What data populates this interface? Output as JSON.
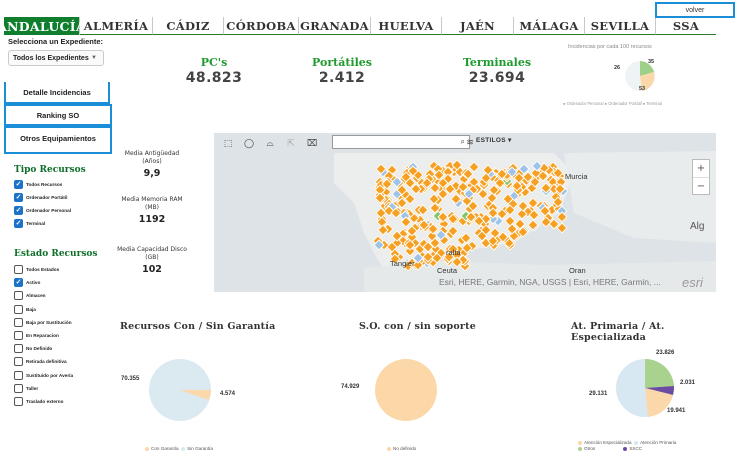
{
  "tabs": [
    "ANDALUCÍA",
    "ALMERÍA",
    "CÁDIZ",
    "CÓRDOBA",
    "GRANADA",
    "HUELVA",
    "JAÉN",
    "MÁLAGA",
    "SEVILLA",
    "SSA"
  ],
  "volver_label": "volver",
  "left": {
    "select_label": "Selecciona un Expediente:",
    "select_value": "Todos los Expedientes",
    "nav": [
      "Detalle Incidencias",
      "Ranking SO",
      "Otros Equipamientos"
    ],
    "tipo_title": "Tipo Recursos",
    "tipo_items": [
      {
        "label": "Todos Recursos",
        "checked": true
      },
      {
        "label": "Ordenador Portátil",
        "checked": true
      },
      {
        "label": "Ordenador Personal",
        "checked": true
      },
      {
        "label": "Terminal",
        "checked": true
      }
    ],
    "estado_title": "Estado Recursos",
    "estado_items": [
      {
        "label": "Todos Estados",
        "checked": false
      },
      {
        "label": "Activo",
        "checked": true
      },
      {
        "label": "Almacen",
        "checked": false
      },
      {
        "label": "Baja",
        "checked": false
      },
      {
        "label": "Baja por Sustitución",
        "checked": false
      },
      {
        "label": "En Reparacion",
        "checked": false
      },
      {
        "label": "No Definido",
        "checked": false
      },
      {
        "label": "Retirada definitiva",
        "checked": false
      },
      {
        "label": "Sustituido por Avería",
        "checked": false
      },
      {
        "label": "Taller",
        "checked": false
      },
      {
        "label": "Traslado externo",
        "checked": false
      }
    ]
  },
  "kpis": [
    {
      "label": "PC's",
      "value": "48.823"
    },
    {
      "label": "Portátiles",
      "value": "2.412"
    },
    {
      "label": "Terminales",
      "value": "23.694"
    }
  ],
  "incidencias": {
    "title": "Incidencias por cada 100 recursos",
    "legend": "● Ordenador Personal  ● Ordenador Portátil  ● Terminal",
    "values": [
      "26",
      "35",
      "53"
    ]
  },
  "medias": [
    {
      "label_1": "Media Antigüedad",
      "label_2": "(Años)",
      "value": "9,9"
    },
    {
      "label_1": "Media Memoria RAM",
      "label_2": "(MB)",
      "value": "1192"
    },
    {
      "label_1": "Media Capacidad Disco",
      "label_2": "(GB)",
      "value": "102"
    }
  ],
  "map": {
    "search_placeholder": "",
    "estilos_label": "ESTILOS",
    "attribution": "Esri, HERE, Garmin, NGA, USGS | Esri, HERE, Garmin, ...",
    "esri_logo": "esri",
    "places": [
      "Murcia",
      "Tangier",
      "Ceuta",
      "Oran",
      "Alg",
      "ralta"
    ]
  },
  "charts": {
    "garantia": {
      "title": "Recursos Con / Sin Garantía",
      "values": [
        "70.355",
        "4.574"
      ],
      "legend": [
        "Con Garantía",
        "Sin Garantía"
      ]
    },
    "soporte": {
      "title": "S.O. con / sin soporte",
      "values": [
        "74.929"
      ],
      "legend": [
        "No definido"
      ]
    },
    "atencion": {
      "title": "At. Primaria / At. Especializada",
      "values": [
        "23.826",
        "2.031",
        "29.131",
        "19.941"
      ],
      "legend": [
        "Atención Especializada",
        "Atención Primaria",
        "Otros",
        "SSCC"
      ]
    }
  },
  "chart_data": [
    {
      "type": "pie",
      "title": "Incidencias por cada 100 recursos",
      "categories": [
        "Ordenador Personal",
        "Ordenador Portátil",
        "Terminal"
      ],
      "values": [
        26,
        35,
        53
      ]
    },
    {
      "type": "pie",
      "title": "Recursos Con / Sin Garantía",
      "categories": [
        "Con Garantía",
        "Sin Garantía"
      ],
      "values": [
        70355,
        4574
      ]
    },
    {
      "type": "pie",
      "title": "S.O. con / sin soporte",
      "categories": [
        "No definido"
      ],
      "values": [
        74929
      ]
    },
    {
      "type": "pie",
      "title": "At. Primaria / At. Especializada",
      "categories": [
        "Atención Especializada",
        "Atención Primaria",
        "Otros",
        "SSCC"
      ],
      "values": [
        19941,
        29131,
        23826,
        2031
      ]
    }
  ],
  "colors": {
    "green": "#0f7f2e",
    "blue_border": "#1a8fd8",
    "orange": "#f6a53a",
    "light_blue": "#d9eaf4",
    "peach": "#fbd8aa"
  }
}
